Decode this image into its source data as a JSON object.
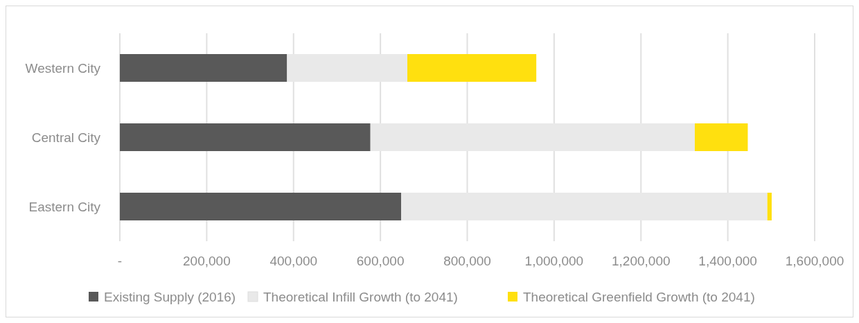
{
  "chart_data": {
    "type": "bar",
    "orientation": "horizontal",
    "stacked": true,
    "categories": [
      "Western City",
      "Central City",
      "Eastern City"
    ],
    "series": [
      {
        "name": "Existing Supply (2016)",
        "color": "#595959",
        "values": [
          385000,
          577000,
          648000
        ]
      },
      {
        "name": "Theoretical Infill Growth (to 2041)",
        "color": "#e9e9e9",
        "values": [
          277000,
          747000,
          843000
        ]
      },
      {
        "name": "Theoretical Greenfield Growth (to 2041)",
        "color": "#ffe00f",
        "values": [
          297000,
          122000,
          10000
        ]
      }
    ],
    "xlim": [
      0,
      1600000
    ],
    "xticks": [
      {
        "value": 0,
        "label": "-"
      },
      {
        "value": 200000,
        "label": "200,000"
      },
      {
        "value": 400000,
        "label": "400,000"
      },
      {
        "value": 600000,
        "label": "600,000"
      },
      {
        "value": 800000,
        "label": "800,000"
      },
      {
        "value": 1000000,
        "label": "1,000,000"
      },
      {
        "value": 1200000,
        "label": "1,200,000"
      },
      {
        "value": 1400000,
        "label": "1,400,000"
      },
      {
        "value": 1600000,
        "label": "1,600,000"
      }
    ],
    "grid": "x",
    "legend": "bottom"
  }
}
